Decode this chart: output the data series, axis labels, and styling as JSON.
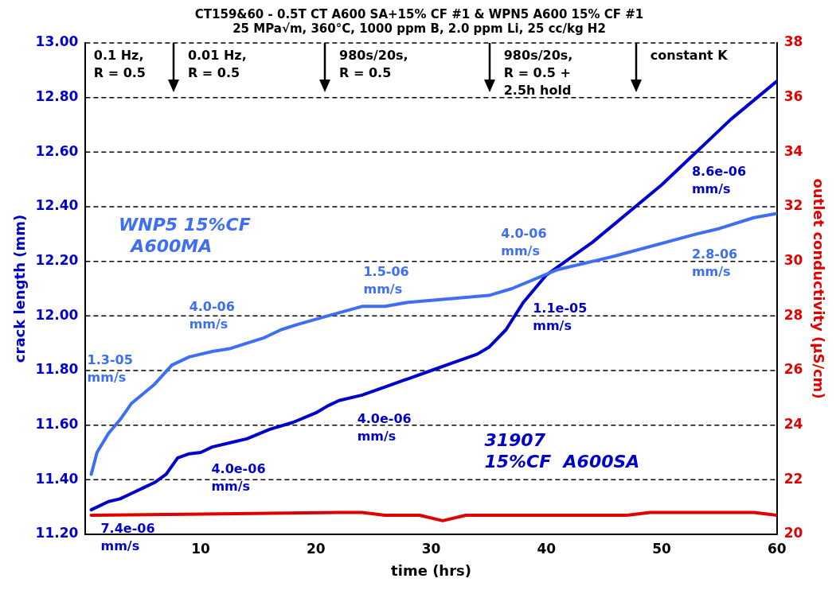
{
  "chart_data": {
    "type": "line",
    "title": "CT159&60 - 0.5T CT A600 SA+15% CF #1 & WPN5 A600 15% CF #1",
    "subtitle": "25 MPa√m, 360°C, 1000 ppm B, 2.0 ppm Li, 25 cc/kg H2",
    "xlabel": "time (hrs)",
    "ylabel": "crack length (mm)",
    "y2label": "outlet conductivity (µS/cm)",
    "xlim": [
      0,
      60
    ],
    "xticks": [
      10,
      20,
      30,
      40,
      50,
      60
    ],
    "ylim": [
      11.2,
      13
    ],
    "yticks": [
      {
        "value": 11.2,
        "label": "11.20"
      },
      {
        "value": 11.4,
        "label": "11.40"
      },
      {
        "value": 11.6,
        "label": "11.60"
      },
      {
        "value": 11.8,
        "label": "11.80"
      },
      {
        "value": 12,
        "label": "12.00"
      },
      {
        "value": 12.2,
        "label": "12.20"
      },
      {
        "value": 12.4,
        "label": "12.40"
      },
      {
        "value": 12.6,
        "label": "12.60"
      },
      {
        "value": 12.8,
        "label": "12.80"
      },
      {
        "value": 13,
        "label": "13.00"
      }
    ],
    "y2lim": [
      20,
      38
    ],
    "y2ticks": [
      20,
      22,
      24,
      26,
      28,
      30,
      32,
      34,
      36,
      38
    ],
    "grid": "y",
    "legend": false,
    "marker": "none",
    "line_style": "solid",
    "series": [
      {
        "color": "#3d6ef5",
        "x": [
          0.5,
          1,
          2,
          3,
          4,
          6,
          7.5,
          9,
          11,
          12.5,
          14,
          15.5,
          17,
          18.5,
          21,
          24,
          26,
          28,
          35,
          37,
          41,
          46,
          53,
          55,
          58,
          60
        ],
        "values": [
          11.42,
          11.5,
          11.57,
          11.62,
          11.68,
          11.75,
          11.82,
          11.85,
          11.87,
          11.88,
          11.9,
          11.92,
          11.95,
          11.97,
          12.0,
          12.035,
          12.035,
          12.05,
          12.075,
          12.1,
          12.17,
          12.22,
          12.3,
          12.32,
          12.36,
          12.375
        ]
      },
      {
        "color": "#0000cc",
        "x": [
          0.5,
          2,
          3,
          4,
          5,
          6,
          7,
          8,
          9,
          10,
          11,
          13,
          14,
          16,
          18,
          20,
          21,
          22,
          24,
          26,
          28,
          30,
          32,
          34,
          35,
          36.5,
          38,
          40,
          42,
          44,
          46,
          48,
          50,
          52,
          54,
          56,
          58,
          60
        ],
        "values": [
          11.29,
          11.32,
          11.33,
          11.35,
          11.37,
          11.39,
          11.42,
          11.48,
          11.495,
          11.5,
          11.52,
          11.54,
          11.55,
          11.585,
          11.61,
          11.645,
          11.67,
          11.69,
          11.71,
          11.74,
          11.77,
          11.8,
          11.83,
          11.86,
          11.885,
          11.95,
          12.05,
          12.15,
          12.21,
          12.27,
          12.34,
          12.41,
          12.48,
          12.56,
          12.64,
          12.72,
          12.79,
          12.86
        ]
      },
      {
        "color": "#e00000",
        "axis": "y2",
        "x": [
          0.5,
          22,
          24,
          26,
          29,
          31,
          33,
          47,
          49,
          58,
          60
        ],
        "values": [
          20.7,
          20.8,
          20.8,
          20.7,
          20.7,
          20.5,
          20.7,
          20.7,
          20.8,
          20.8,
          20.7
        ]
      }
    ],
    "annotations": [
      "0.1 Hz,\nR = 0.5",
      "0.01 Hz,\nR = 0.5",
      "980s/20s,\nR = 0.5",
      "980s/20s,\nR = 0.5 +\n2.5h hold",
      "constant K",
      "1.3-05\nmm/s",
      "4.0-06\nmm/s",
      "1.5-06\nmm/s",
      "4.0-06\nmm/s",
      "2.8-06\nmm/s",
      "8.6e-06\nmm/s",
      "1.1e-05\nmm/s",
      "4.0e-06\nmm/s",
      "4.0e-06\nmm/s",
      "7.4e-06\nmm/s",
      "WNP5 15%CF\n  A600MA",
      "31907\n15%CF  A600SA"
    ]
  }
}
